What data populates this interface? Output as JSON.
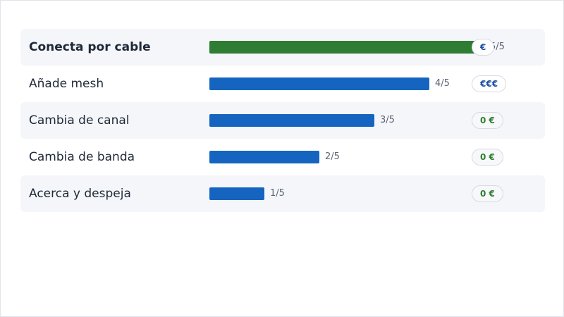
{
  "chart_data": {
    "type": "bar",
    "orientation": "horizontal",
    "xlim": [
      0,
      5
    ],
    "categories": [
      "Conecta por cable",
      "Añade mesh",
      "Cambia de canal",
      "Cambia de banda",
      "Acerca y despeja"
    ],
    "values": [
      5,
      4,
      3,
      2,
      1
    ],
    "value_labels": [
      "5/5",
      "4/5",
      "3/5",
      "2/5",
      "1/5"
    ],
    "cost_labels": [
      "€",
      "€€€",
      "0 €",
      "0 €",
      "0 €"
    ],
    "colors": {
      "highlight": "#2e7d32",
      "bar": "#1565c0",
      "cost_paid": "#1e4fa3",
      "cost_free": "#2e7d32"
    }
  }
}
